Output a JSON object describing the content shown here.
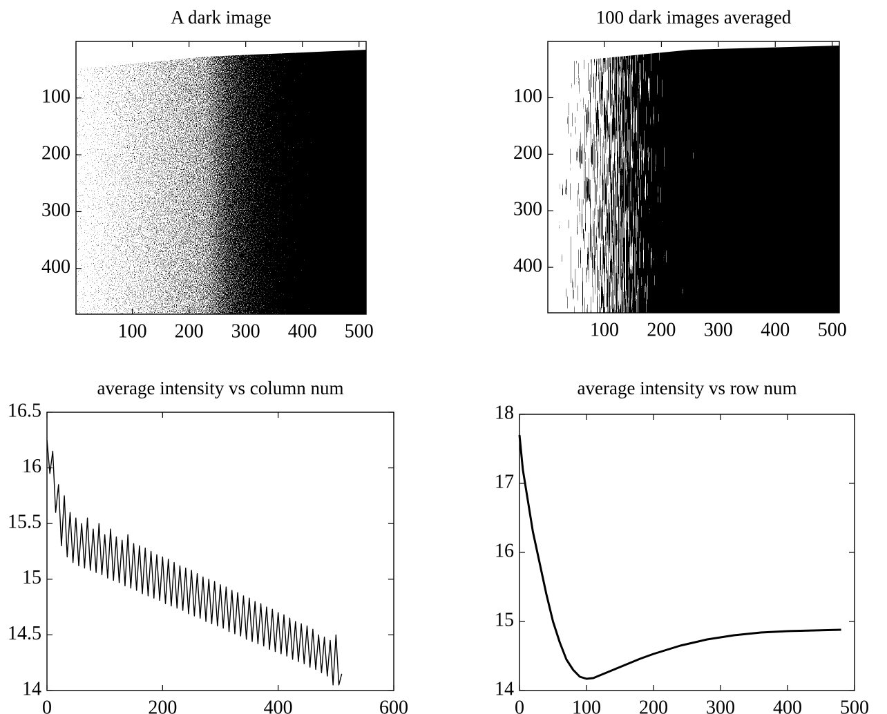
{
  "chart_data": [
    {
      "type": "image",
      "title": "A dark image",
      "xlim": [
        0.5,
        512.5
      ],
      "ylim": [
        480.5,
        0.5
      ],
      "xticks": [
        100,
        200,
        300,
        400,
        500
      ],
      "yticks": [
        100,
        200,
        300,
        400
      ]
    },
    {
      "type": "image",
      "title": "100 dark images averaged",
      "xlim": [
        0.5,
        512.5
      ],
      "ylim": [
        480.5,
        0.5
      ],
      "xticks": [
        100,
        200,
        300,
        400,
        500
      ],
      "yticks": [
        100,
        200,
        300,
        400
      ]
    },
    {
      "type": "line",
      "title": "average intensity vs column num",
      "color": "#000000",
      "xlim": [
        0,
        600
      ],
      "ylim": [
        14,
        16.5
      ],
      "xticks": [
        0,
        200,
        400,
        600
      ],
      "yticks": [
        14,
        14.5,
        15,
        15.5,
        16,
        16.5
      ],
      "x": [
        0,
        5,
        10,
        15,
        20,
        25,
        30,
        35,
        40,
        45,
        50,
        55,
        60,
        65,
        70,
        75,
        80,
        85,
        90,
        95,
        100,
        105,
        110,
        115,
        120,
        125,
        130,
        135,
        140,
        145,
        150,
        155,
        160,
        165,
        170,
        175,
        180,
        185,
        190,
        195,
        200,
        205,
        210,
        215,
        220,
        225,
        230,
        235,
        240,
        245,
        250,
        255,
        260,
        265,
        270,
        275,
        280,
        285,
        290,
        295,
        300,
        305,
        310,
        315,
        320,
        325,
        330,
        335,
        340,
        345,
        350,
        355,
        360,
        365,
        370,
        375,
        380,
        385,
        390,
        395,
        400,
        405,
        410,
        415,
        420,
        425,
        430,
        435,
        440,
        445,
        450,
        455,
        460,
        465,
        470,
        475,
        480,
        485,
        490,
        495,
        500,
        505,
        510
      ],
      "values": [
        16.25,
        15.95,
        16.15,
        15.6,
        15.85,
        15.3,
        15.75,
        15.2,
        15.6,
        15.15,
        15.55,
        15.12,
        15.5,
        15.1,
        15.55,
        15.08,
        15.45,
        15.06,
        15.5,
        15.04,
        15.4,
        15.01,
        15.45,
        14.99,
        15.38,
        14.97,
        15.35,
        14.94,
        15.4,
        14.92,
        15.32,
        14.9,
        15.3,
        14.87,
        15.28,
        14.85,
        15.25,
        14.83,
        15.22,
        14.81,
        15.2,
        14.78,
        15.18,
        14.76,
        15.15,
        14.74,
        15.12,
        14.72,
        15.1,
        14.69,
        15.08,
        14.67,
        15.05,
        14.65,
        15.02,
        14.62,
        15.0,
        14.6,
        14.98,
        14.58,
        14.95,
        14.56,
        14.93,
        14.53,
        14.9,
        14.51,
        14.88,
        14.49,
        14.85,
        14.46,
        14.83,
        14.44,
        14.8,
        14.42,
        14.78,
        14.4,
        14.75,
        14.37,
        14.73,
        14.35,
        14.7,
        14.33,
        14.68,
        14.31,
        14.65,
        14.28,
        14.62,
        14.26,
        14.6,
        14.24,
        14.58,
        14.21,
        14.55,
        14.19,
        14.5,
        14.16,
        14.48,
        14.13,
        14.45,
        14.05,
        14.5,
        14.05,
        14.15
      ]
    },
    {
      "type": "line",
      "title": "average intensity vs row num",
      "color": "#000000",
      "xlim": [
        0,
        500
      ],
      "ylim": [
        14,
        18
      ],
      "xticks": [
        0,
        100,
        200,
        300,
        400,
        500
      ],
      "yticks": [
        14,
        15,
        16,
        17,
        18
      ],
      "x": [
        0,
        5,
        10,
        15,
        20,
        30,
        40,
        50,
        60,
        70,
        80,
        90,
        100,
        110,
        120,
        140,
        160,
        180,
        200,
        240,
        280,
        320,
        360,
        400,
        440,
        480
      ],
      "values": [
        17.7,
        17.2,
        16.9,
        16.6,
        16.3,
        15.85,
        15.4,
        15.0,
        14.7,
        14.45,
        14.3,
        14.2,
        14.17,
        14.18,
        14.22,
        14.3,
        14.38,
        14.46,
        14.53,
        14.65,
        14.74,
        14.8,
        14.84,
        14.86,
        14.87,
        14.88
      ]
    }
  ]
}
